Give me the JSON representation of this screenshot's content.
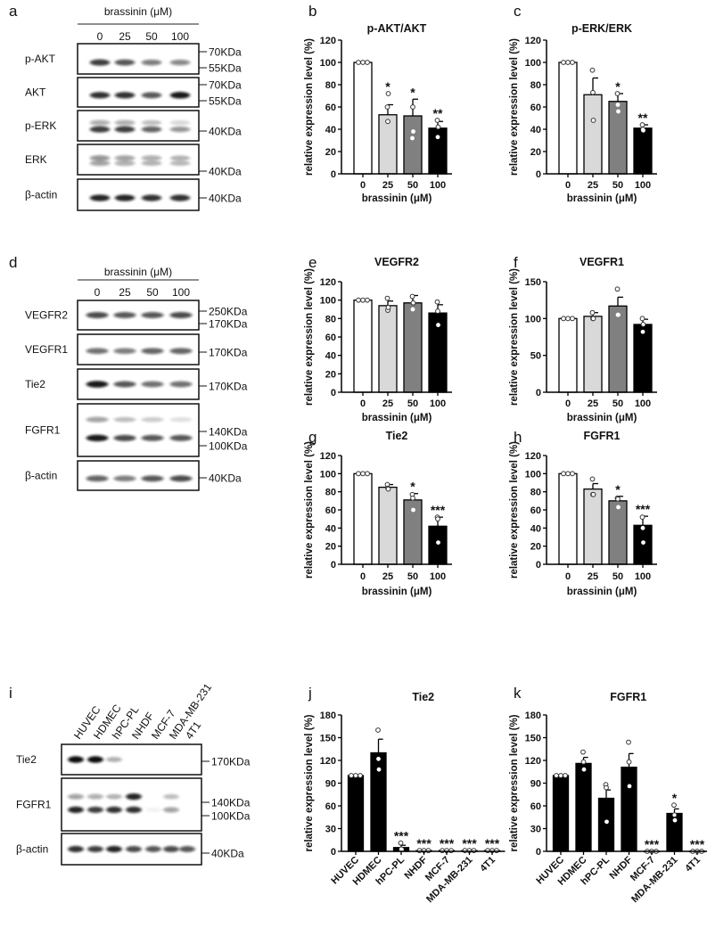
{
  "panel_labels": [
    "a",
    "b",
    "c",
    "d",
    "e",
    "f",
    "g",
    "h",
    "i",
    "j",
    "k"
  ],
  "blots": [
    {
      "panel": "a",
      "header": "brassinin (μM)",
      "lanes": [
        "0",
        "25",
        "50",
        "100"
      ],
      "rows": [
        {
          "label": "p-AKT",
          "markers": [
            "70KDa",
            "55KDa"
          ]
        },
        {
          "label": "AKT",
          "markers": [
            "70KDa",
            "55KDa"
          ]
        },
        {
          "label": "p-ERK",
          "markers": [
            "40KDa"
          ]
        },
        {
          "label": "ERK",
          "markers": [
            "40KDa"
          ]
        },
        {
          "label": "β-actin",
          "markers": [
            "40KDa"
          ]
        }
      ]
    },
    {
      "panel": "d",
      "header": "brassinin (μM)",
      "lanes": [
        "0",
        "25",
        "50",
        "100"
      ],
      "rows": [
        {
          "label": "VEGFR2",
          "markers": [
            "250KDa",
            "170KDa"
          ]
        },
        {
          "label": "VEGFR1",
          "markers": [
            "170KDa"
          ]
        },
        {
          "label": "Tie2",
          "markers": [
            "170KDa"
          ]
        },
        {
          "label": "FGFR1",
          "markers": [
            "140KDa",
            "100KDa"
          ]
        },
        {
          "label": "β-actin",
          "markers": [
            "40KDa"
          ]
        }
      ]
    },
    {
      "panel": "i",
      "header": "",
      "lanes": [
        "HUVEC",
        "HDMEC",
        "hPC-PL",
        "NHDF",
        "MCF-7",
        "MDA-MB-231",
        "4T1"
      ],
      "rows": [
        {
          "label": "Tie2",
          "markers": [
            "170KDa"
          ]
        },
        {
          "label": "FGFR1",
          "markers": [
            "140KDa",
            "100KDa"
          ]
        },
        {
          "label": "β-actin",
          "markers": [
            "40KDa"
          ]
        }
      ]
    }
  ],
  "colors": {
    "c0": "#ffffff",
    "c25": "#d9d9d9",
    "c50": "#808080",
    "c100": "#000000"
  },
  "chart_data": [
    {
      "panel": "b",
      "type": "bar",
      "title": "p-AKT/AKT",
      "xlabel": "brassinin (μM)",
      "ylabel": "relative expression level (%)",
      "ylim": [
        0,
        120
      ],
      "yticks": [
        0,
        20,
        40,
        60,
        80,
        100,
        120
      ],
      "categories": [
        "0",
        "25",
        "50",
        "100"
      ],
      "values": [
        100,
        53,
        52,
        41
      ],
      "errors": [
        0,
        9,
        15,
        6
      ],
      "points": [
        [
          100,
          100,
          100
        ],
        [
          60,
          47,
          72
        ],
        [
          32,
          60,
          38
        ],
        [
          48,
          33,
          42
        ]
      ],
      "significance": [
        "",
        "*",
        "*",
        "**"
      ],
      "fills": [
        "#ffffff",
        "#d9d9d9",
        "#808080",
        "#000000"
      ]
    },
    {
      "panel": "c",
      "type": "bar",
      "title": "p-ERK/ERK",
      "xlabel": "brassinin (μM)",
      "ylabel": "relative expression level (%)",
      "ylim": [
        0,
        120
      ],
      "yticks": [
        0,
        20,
        40,
        60,
        80,
        100,
        120
      ],
      "categories": [
        "0",
        "25",
        "50",
        "100"
      ],
      "values": [
        100,
        71,
        65,
        41
      ],
      "errors": [
        0,
        15,
        7,
        3
      ],
      "points": [
        [
          100,
          100,
          100
        ],
        [
          93,
          73,
          48
        ],
        [
          72,
          62,
          56
        ],
        [
          44,
          40,
          39
        ]
      ],
      "significance": [
        "",
        "",
        "*",
        "**"
      ],
      "fills": [
        "#ffffff",
        "#d9d9d9",
        "#808080",
        "#000000"
      ]
    },
    {
      "panel": "e",
      "type": "bar",
      "title": "VEGFR2",
      "xlabel": "brassinin (μM)",
      "ylabel": "relative expression level (%)",
      "ylim": [
        0,
        120
      ],
      "yticks": [
        0,
        20,
        40,
        60,
        80,
        100,
        120
      ],
      "categories": [
        "0",
        "25",
        "50",
        "100"
      ],
      "values": [
        100,
        94,
        97,
        86
      ],
      "errors": [
        0,
        5,
        8,
        9
      ],
      "points": [
        [
          100,
          100,
          100
        ],
        [
          102,
          89,
          92
        ],
        [
          104,
          90,
          97
        ],
        [
          98,
          88,
          73
        ]
      ],
      "significance": [
        "",
        "",
        "",
        ""
      ],
      "fills": [
        "#ffffff",
        "#d9d9d9",
        "#808080",
        "#000000"
      ]
    },
    {
      "panel": "f",
      "type": "bar",
      "title": "VEGFR1",
      "xlabel": "brassinin (μM)",
      "ylabel": "relative expression level (%)",
      "ylim": [
        0,
        150
      ],
      "yticks": [
        0,
        50,
        100,
        150
      ],
      "categories": [
        "0",
        "25",
        "50",
        "100"
      ],
      "values": [
        100,
        103,
        117,
        92
      ],
      "errors": [
        0,
        5,
        12,
        7
      ],
      "points": [
        [
          100,
          100,
          100
        ],
        [
          108,
          100,
          100
        ],
        [
          140,
          105,
          105
        ],
        [
          100,
          82,
          92
        ]
      ],
      "significance": [
        "",
        "",
        "",
        ""
      ],
      "fills": [
        "#ffffff",
        "#d9d9d9",
        "#808080",
        "#000000"
      ]
    },
    {
      "panel": "g",
      "type": "bar",
      "title": "Tie2",
      "xlabel": "brassinin (μM)",
      "ylabel": "relative expression level (%)",
      "ylim": [
        0,
        120
      ],
      "yticks": [
        0,
        20,
        40,
        60,
        80,
        100,
        120
      ],
      "categories": [
        "0",
        "25",
        "50",
        "100"
      ],
      "values": [
        100,
        85,
        71,
        42
      ],
      "errors": [
        0,
        3,
        7,
        10
      ],
      "points": [
        [
          100,
          100,
          100
        ],
        [
          88,
          84,
          83
        ],
        [
          77,
          73,
          60
        ],
        [
          52,
          50,
          24
        ]
      ],
      "significance": [
        "",
        "",
        "*",
        "***"
      ],
      "fills": [
        "#ffffff",
        "#d9d9d9",
        "#808080",
        "#000000"
      ]
    },
    {
      "panel": "h",
      "type": "bar",
      "title": "FGFR1",
      "xlabel": "brassinin (μM)",
      "ylabel": "relative expression level (%)",
      "ylim": [
        0,
        120
      ],
      "yticks": [
        0,
        20,
        40,
        60,
        80,
        100,
        120
      ],
      "categories": [
        "0",
        "25",
        "50",
        "100"
      ],
      "values": [
        100,
        83,
        70,
        43
      ],
      "errors": [
        0,
        6,
        5,
        10
      ],
      "points": [
        [
          100,
          100,
          100
        ],
        [
          94,
          77,
          77
        ],
        [
          73,
          72,
          63
        ],
        [
          52,
          40,
          24
        ]
      ],
      "significance": [
        "",
        "",
        "*",
        "***"
      ],
      "fills": [
        "#ffffff",
        "#d9d9d9",
        "#808080",
        "#000000"
      ]
    },
    {
      "panel": "j",
      "type": "bar",
      "title": "Tie2",
      "xlabel": "",
      "ylabel": "relative expression level (%)",
      "ylim": [
        0,
        180
      ],
      "yticks": [
        0,
        30,
        60,
        90,
        120,
        150,
        180
      ],
      "categories": [
        "HUVEC",
        "HDMEC",
        "hPC-PL",
        "NHDF",
        "MCF-7",
        "MDA-MB-231",
        "4T1"
      ],
      "values": [
        100,
        130,
        5,
        1,
        1,
        1,
        1
      ],
      "errors": [
        0,
        18,
        3,
        0,
        0,
        0,
        0
      ],
      "points": [
        [
          100,
          100,
          100
        ],
        [
          160,
          122,
          108
        ],
        [
          11,
          3,
          2
        ],
        [
          1,
          1,
          1
        ],
        [
          1,
          1,
          1
        ],
        [
          1,
          1,
          1
        ],
        [
          1,
          1,
          1
        ]
      ],
      "significance": [
        "",
        "",
        "***",
        "***",
        "***",
        "***",
        "***"
      ],
      "fills": [
        "#000000",
        "#000000",
        "#000000",
        "#000000",
        "#000000",
        "#000000",
        "#000000"
      ]
    },
    {
      "panel": "k",
      "type": "bar",
      "title": "FGFR1",
      "xlabel": "",
      "ylabel": "relative expression level (%)",
      "ylim": [
        0,
        180
      ],
      "yticks": [
        0,
        30,
        60,
        90,
        120,
        150,
        180
      ],
      "categories": [
        "HUVEC",
        "HDMEC",
        "hPC-PL",
        "NHDF",
        "MCF-7",
        "MDA-MB-231",
        "4T1"
      ],
      "values": [
        100,
        116,
        70,
        111,
        0,
        50,
        0
      ],
      "errors": [
        0,
        8,
        11,
        18,
        0,
        6,
        0
      ],
      "points": [
        [
          100,
          100,
          100
        ],
        [
          131,
          118,
          108
        ],
        [
          88,
          84,
          39
        ],
        [
          144,
          118,
          86
        ],
        [
          0,
          0,
          0
        ],
        [
          61,
          48,
          41
        ],
        [
          0,
          0,
          0
        ]
      ],
      "significance": [
        "",
        "",
        "",
        "",
        "***",
        "*",
        "***"
      ],
      "fills": [
        "#000000",
        "#000000",
        "#000000",
        "#000000",
        "#000000",
        "#000000",
        "#000000"
      ]
    }
  ]
}
